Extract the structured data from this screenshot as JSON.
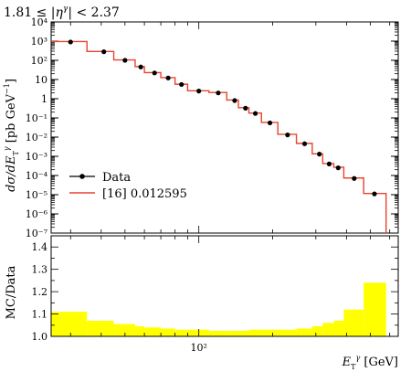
{
  "chart_data": [
    {
      "type": "line",
      "title": "1.81 ≤ |η^γ| < 2.37",
      "title_parts": {
        "lhs": "1.81 ≤ |",
        "eta": "η",
        "sup": "γ",
        "rhs": "| < 2.37"
      },
      "ylabel": "dσ/dE_T^γ [pb GeV⁻¹]",
      "ylabel_parts": {
        "main": "dσ/dE",
        "sub": "T",
        "sup": "γ",
        "unit": " [pb GeV",
        "unit_sup": "−1",
        "close": "]"
      },
      "yscale": "log",
      "ylim": [
        1e-07,
        10000.0
      ],
      "xscale": "log",
      "xlim": [
        25,
        650
      ],
      "ytick_labels": [
        "10⁻⁷",
        "10⁻⁶",
        "10⁻⁵",
        "10⁻⁴",
        "10⁻³",
        "10⁻²",
        "10⁻¹",
        "1",
        "10",
        "10²",
        "10³",
        "10⁴"
      ],
      "legend": {
        "placement": "lower-left",
        "entries": [
          "Data",
          "[16] 0.012595"
        ]
      },
      "series": [
        {
          "name": "Data",
          "style": "points",
          "color": "#000000",
          "x": [
            30,
            41,
            50,
            58,
            66,
            75,
            85,
            100,
            120,
            140,
            155,
            170,
            195,
            230,
            270,
            310,
            340,
            370,
            430,
            520
          ],
          "y": [
            900,
            280,
            100,
            45,
            22,
            12,
            5.5,
            2.5,
            2.0,
            0.8,
            0.32,
            0.17,
            0.055,
            0.013,
            0.0045,
            0.0013,
            0.0004,
            0.00025,
            7e-05,
            1.1e-05
          ]
        },
        {
          "name": "[16] 0.012595",
          "style": "histogram",
          "color": "#e8442e",
          "edges": [
            25,
            35,
            45,
            55,
            60,
            70,
            80,
            90,
            110,
            130,
            145,
            160,
            180,
            210,
            250,
            290,
            320,
            355,
            390,
            470,
            580
          ],
          "values": [
            950,
            290,
            105,
            47,
            23,
            12.5,
            5.7,
            2.6,
            2.1,
            0.85,
            0.34,
            0.18,
            0.058,
            0.014,
            0.0047,
            0.00135,
            0.00042,
            0.00027,
            7.4e-05,
            1.15e-05
          ]
        }
      ]
    },
    {
      "type": "bar",
      "ylabel": "MC/Data",
      "xlabel": "E_T^γ [GeV]",
      "xlabel_parts": {
        "main": "E",
        "sub": "T",
        "sup": "γ",
        "unit": " [GeV]"
      },
      "ylim": [
        1.0,
        1.45
      ],
      "yticks": [
        "1.0",
        "1.1",
        "1.2",
        "1.3",
        "1.4"
      ],
      "xtick_labels": [
        "10²"
      ],
      "band_color": "#ffff00",
      "edges": [
        25,
        35,
        45,
        55,
        60,
        70,
        80,
        90,
        110,
        130,
        145,
        160,
        180,
        210,
        250,
        290,
        320,
        355,
        390,
        470,
        580
      ],
      "values": [
        1.11,
        1.07,
        1.055,
        1.045,
        1.04,
        1.035,
        1.03,
        1.03,
        1.025,
        1.025,
        1.025,
        1.03,
        1.03,
        1.03,
        1.035,
        1.045,
        1.06,
        1.07,
        1.12,
        1.24
      ]
    }
  ]
}
